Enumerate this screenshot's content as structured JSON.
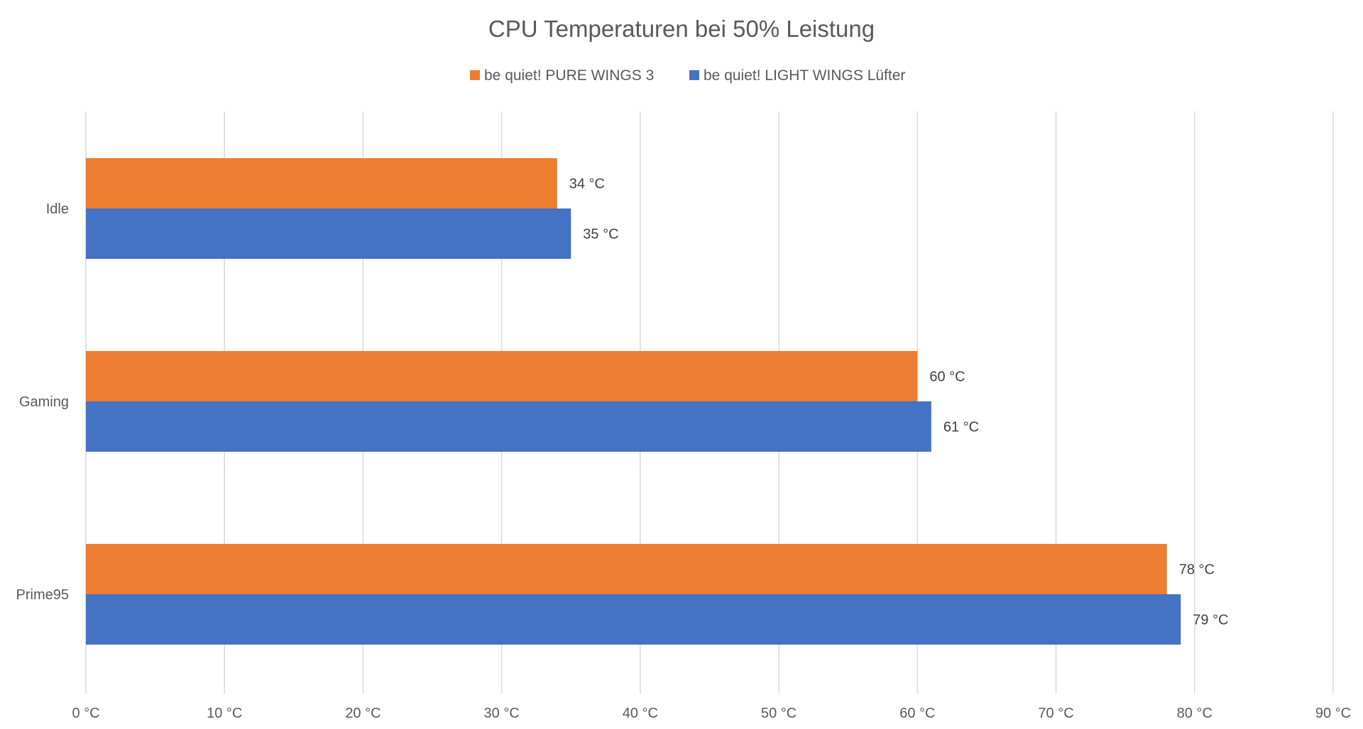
{
  "chart_data": {
    "type": "bar",
    "orientation": "horizontal",
    "title": "CPU Temperaturen bei 50% Leistung",
    "categories": [
      "Idle",
      "Gaming",
      "Prime95"
    ],
    "series": [
      {
        "name": "be quiet! PURE WINGS 3",
        "values": [
          34,
          60,
          78
        ],
        "color": "#ED7D31",
        "labels": [
          "34 °C",
          "60 °C",
          "78 °C"
        ]
      },
      {
        "name": "be quiet! LIGHT WINGS Lüfter",
        "values": [
          35,
          61,
          79
        ],
        "color": "#4472C4",
        "labels": [
          "35 °C",
          "61 °C",
          "79 °C"
        ]
      }
    ],
    "xlim": [
      0,
      90
    ],
    "xticks": [
      0,
      10,
      20,
      30,
      40,
      50,
      60,
      70,
      80,
      90
    ],
    "xtick_labels": [
      "0 °C",
      "10 °C",
      "20 °C",
      "30 °C",
      "40 °C",
      "50 °C",
      "60 °C",
      "70 °C",
      "80 °C",
      "90 °C"
    ],
    "grid": "vertical",
    "legend_position": "top",
    "gridline_color": "#D9D9D9"
  }
}
